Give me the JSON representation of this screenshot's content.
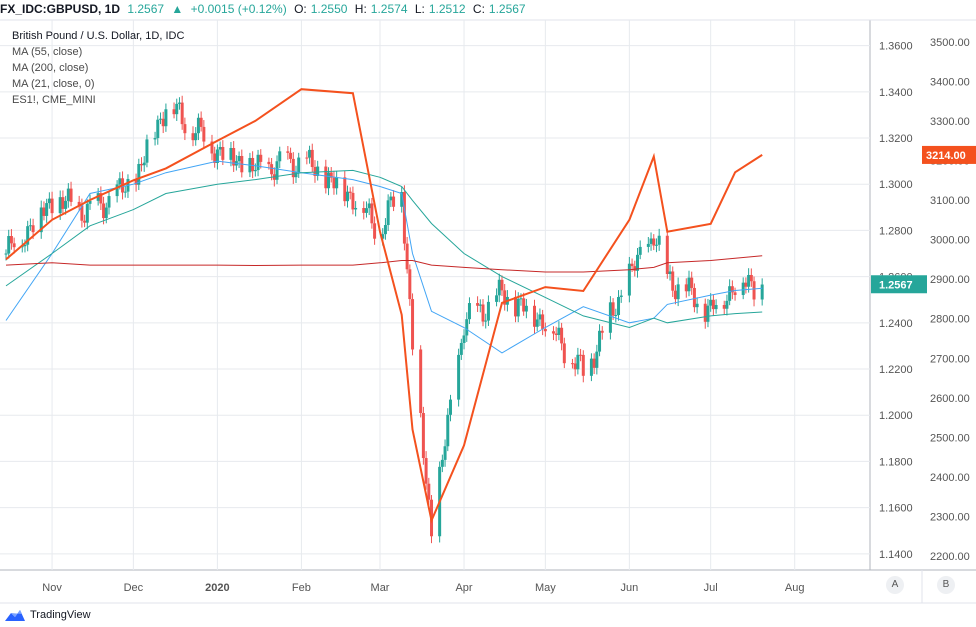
{
  "header": {
    "symbol": "FX_IDC:GBPUSD, 1D",
    "last": "1.2567",
    "change": "+0.0015 (+0.12%)",
    "o_label": "O:",
    "o": "1.2550",
    "h_label": "H:",
    "h": "1.2574",
    "l_label": "L:",
    "l": "1.2512",
    "c_label": "C:",
    "c": "1.2567"
  },
  "legend": [
    "British Pound / U.S. Dollar, 1D, IDC",
    "MA (55, close)",
    "MA (200, close)",
    "MA (21, close, 0)",
    "ES1!, CME_MINI"
  ],
  "footer": {
    "brand": "TradingView"
  },
  "axis_buttons": {
    "a": "A",
    "b": "B"
  },
  "colors": {
    "up": "#26a69a",
    "down": "#ef5350",
    "es": "#f4511e",
    "ma55": "#42a5f5",
    "ma200": "#26a69a",
    "ma21": "#c62828",
    "grid": "#e7eaee",
    "axis_text": "#555555"
  },
  "chart_data": {
    "type": "line",
    "title": "British Pound / U.S. Dollar, 1D, IDC",
    "x_tick_labels": [
      "Nov",
      "Dec",
      "2020",
      "Feb",
      "Mar",
      "Apr",
      "May",
      "Jun",
      "Jul",
      "Aug"
    ],
    "left_axis_ticks": [
      "1.3600",
      "1.3400",
      "1.3200",
      "1.3000",
      "1.2800",
      "1.2600",
      "1.2400",
      "1.2200",
      "1.2000",
      "1.1800",
      "1.1600",
      "1.1400"
    ],
    "right_axis_ticks": [
      "3500.00",
      "3400.00",
      "3300.00",
      "3200.00",
      "3100.00",
      "3000.00",
      "2900.00",
      "2800.00",
      "2700.00",
      "2600.00",
      "2500.00",
      "2400.00",
      "2300.00",
      "2200.00"
    ],
    "ylim_gbpusd": [
      1.133,
      1.3711
    ],
    "ylim_es": [
      2165,
      3555
    ],
    "x": [
      "2019-10-15",
      "2019-11-01",
      "2019-11-15",
      "2019-12-01",
      "2019-12-13",
      "2020-01-01",
      "2020-01-15",
      "2020-02-01",
      "2020-02-20",
      "2020-03-01",
      "2020-03-09",
      "2020-03-13",
      "2020-03-20",
      "2020-04-01",
      "2020-04-15",
      "2020-05-01",
      "2020-05-15",
      "2020-06-01",
      "2020-06-10",
      "2020-06-15",
      "2020-07-01",
      "2020-07-10",
      "2020-07-20"
    ],
    "series": [
      {
        "name": "British Pound / U.S. Dollar, 1D, IDC",
        "values": [
          1.27,
          1.293,
          1.288,
          1.3,
          1.335,
          1.315,
          1.306,
          1.31,
          1.295,
          1.28,
          1.299,
          1.23,
          1.15,
          1.24,
          1.252,
          1.241,
          1.218,
          1.26,
          1.278,
          1.26,
          1.245,
          1.257,
          1.2567
        ]
      },
      {
        "name": "ES1!, CME_MINI",
        "values": [
          2950,
          3050,
          3100,
          3150,
          3180,
          3250,
          3300,
          3380,
          3370,
          3020,
          2810,
          2520,
          2290,
          2480,
          2840,
          2880,
          2870,
          3050,
          3210,
          3020,
          3040,
          3170,
          3214
        ]
      },
      {
        "name": "MA (55, close)",
        "values": [
          1.241,
          1.27,
          1.296,
          1.3,
          1.305,
          1.31,
          1.308,
          1.305,
          1.302,
          1.299,
          1.296,
          1.27,
          1.245,
          1.238,
          1.227,
          1.238,
          1.247,
          1.24,
          1.242,
          1.248,
          1.252,
          1.254,
          1.255
        ]
      },
      {
        "name": "MA (200, close)",
        "values": [
          1.256,
          1.27,
          1.282,
          1.289,
          1.296,
          1.3,
          1.302,
          1.305,
          1.306,
          1.303,
          1.299,
          1.293,
          1.283,
          1.27,
          1.26,
          1.251,
          1.243,
          1.238,
          1.242,
          1.24,
          1.243,
          1.244,
          1.2447
        ]
      },
      {
        "name": "MA (21, close, 0)",
        "values": [
          1.265,
          1.266,
          1.265,
          1.265,
          1.265,
          1.265,
          1.2648,
          1.265,
          1.265,
          1.266,
          1.267,
          1.267,
          1.265,
          1.264,
          1.263,
          1.262,
          1.262,
          1.263,
          1.264,
          1.266,
          1.267,
          1.268,
          1.269
        ]
      }
    ],
    "last_labels": {
      "gbpusd": "1.2567",
      "es": "3214.00"
    },
    "grid": true
  }
}
